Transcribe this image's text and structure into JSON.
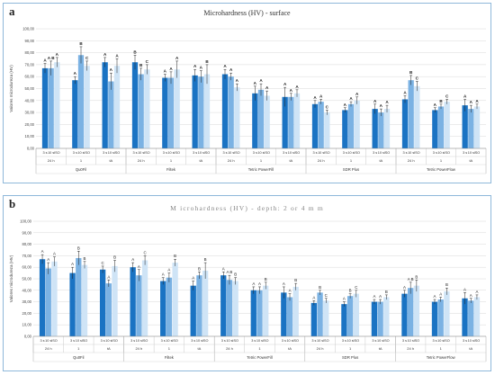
{
  "colors": {
    "dark": "#1a73c3",
    "mid": "#7bb2e3",
    "light": "#cfe4f6",
    "grid": "#d8d8d8",
    "axis": "#888888",
    "panel_border": "#8fb8da"
  },
  "chart_data": [
    {
      "panel": "a",
      "type": "bar",
      "title": "Microhardness (HV) - surface",
      "ylabel": "Valores microdureza (HV)",
      "ylim": [
        0,
        100
      ],
      "yticks": [
        "0,00",
        "10,00",
        "20,00",
        "30,00",
        "40,00",
        "50,00",
        "60,00",
        "70,00",
        "80,00",
        "90,00",
        "100,00"
      ],
      "bar_labels": [
        "3 s",
        "10 s",
        "ISO"
      ],
      "materials": [
        {
          "name": "Qu0Fil",
          "groups": [
            {
              "name": "24 h",
              "values": [
                67,
                67,
                72
              ],
              "errors": [
                4,
                6,
                4
              ],
              "letters": [
                "A",
                "A B",
                "A"
              ]
            },
            {
              "name": "1",
              "values": [
                57,
                78,
                69
              ],
              "errors": [
                3,
                7,
                4
              ],
              "letters": [
                "A",
                "B",
                "C"
              ]
            },
            {
              "name": "tA",
              "values": [
                72,
                56,
                69
              ],
              "errors": [
                4,
                7,
                6
              ],
              "letters": [
                "A",
                "A",
                "A"
              ]
            }
          ]
        },
        {
          "name": "Filtek",
          "groups": [
            {
              "name": "24 h",
              "values": [
                72,
                62,
                66
              ],
              "errors": [
                6,
                5,
                4
              ],
              "letters": [
                "B",
                "B",
                "C"
              ]
            },
            {
              "name": "1",
              "values": [
                59,
                59,
                66
              ],
              "errors": [
                3,
                5,
                7
              ],
              "letters": [
                "A",
                "A",
                "A"
              ]
            },
            {
              "name": "tA",
              "values": [
                61,
                60,
                62
              ],
              "errors": [
                5,
                5,
                8
              ],
              "letters": [
                "A",
                "A",
                "B"
              ]
            }
          ]
        },
        {
          "name": "Tetric PowerFill",
          "groups": [
            {
              "name": "24 h",
              "values": [
                62,
                60,
                51
              ],
              "errors": [
                4,
                3,
                3
              ],
              "letters": [
                "A",
                "A",
                "A"
              ]
            },
            {
              "name": "1",
              "values": [
                46,
                49,
                44
              ],
              "errors": [
                6,
                5,
                4
              ],
              "letters": [
                "A",
                "A",
                "A"
              ]
            },
            {
              "name": "tA",
              "values": [
                43,
                43,
                46
              ],
              "errors": [
                8,
                3,
                3
              ],
              "letters": [
                "A",
                "A",
                "A"
              ]
            }
          ]
        },
        {
          "name": "SDR Plus",
          "groups": [
            {
              "name": "24 h",
              "values": [
                37,
                39,
                30
              ],
              "errors": [
                3,
                2,
                2
              ],
              "letters": [
                "A",
                "A",
                "C"
              ]
            },
            {
              "name": "1",
              "values": [
                32,
                37,
                40
              ],
              "errors": [
                2,
                2,
                3
              ],
              "letters": [
                "A",
                "A",
                "A"
              ]
            },
            {
              "name": "tA",
              "values": [
                33,
                30,
                33
              ],
              "errors": [
                4,
                3,
                3
              ],
              "letters": [
                "A",
                "A",
                "A"
              ]
            }
          ]
        },
        {
          "name": "Tetric PowerFlow",
          "groups": [
            {
              "name": "24 h",
              "values": [
                41,
                57,
                52
              ],
              "errors": [
                3,
                4,
                4
              ],
              "letters": [
                "A",
                "B",
                "C"
              ]
            },
            {
              "name": "1",
              "values": [
                32,
                35,
                39
              ],
              "errors": [
                2,
                2,
                2
              ],
              "letters": [
                "A",
                "B",
                "C"
              ]
            },
            {
              "name": "tA",
              "values": [
                36,
                33,
                35
              ],
              "errors": [
                5,
                3,
                2
              ],
              "letters": [
                "A",
                "A",
                "A"
              ]
            }
          ]
        }
      ]
    },
    {
      "panel": "b",
      "type": "bar",
      "title": "Microhardness (HV) - depth: 2 or 4 mm",
      "ylabel": "Valores microdureza (HV)",
      "ylim": [
        0,
        100
      ],
      "yticks": [
        "0,00",
        "10,00",
        "20,00",
        "30,00",
        "40,00",
        "50,00",
        "60,00",
        "70,00",
        "80,00",
        "90,00",
        "100,00"
      ],
      "bar_labels": [
        "3 s",
        "10 s",
        "ISO"
      ],
      "materials": [
        {
          "name": "Qu0Fil",
          "groups": [
            {
              "name": "24 h",
              "values": [
                67,
                59,
                65
              ],
              "errors": [
                4,
                5,
                4
              ],
              "letters": [
                "A",
                "A",
                "A"
              ]
            },
            {
              "name": "1",
              "values": [
                55,
                68,
                62
              ],
              "errors": [
                5,
                6,
                3
              ],
              "letters": [
                "A",
                "B",
                "B"
              ]
            },
            {
              "name": "tA",
              "values": [
                58,
                46,
                61
              ],
              "errors": [
                3,
                3,
                5
              ],
              "letters": [
                "C",
                "A",
                "B"
              ]
            }
          ]
        },
        {
          "name": "Filtek",
          "groups": [
            {
              "name": "24 h",
              "values": [
                60,
                53,
                66
              ],
              "errors": [
                4,
                5,
                4
              ],
              "letters": [
                "A",
                "A",
                "C"
              ]
            },
            {
              "name": "1",
              "values": [
                48,
                51,
                64
              ],
              "errors": [
                3,
                4,
                3
              ],
              "letters": [
                "A",
                "A",
                "B"
              ]
            },
            {
              "name": "tA",
              "values": [
                44,
                53,
                57
              ],
              "errors": [
                4,
                3,
                7
              ],
              "letters": [
                "A",
                "B",
                "B"
              ]
            }
          ]
        },
        {
          "name": "Tetric PowerFill",
          "groups": [
            {
              "name": "24 h",
              "values": [
                53,
                49,
                48
              ],
              "errors": [
                3,
                4,
                3
              ],
              "letters": [
                "A",
                "A B",
                "B"
              ]
            },
            {
              "name": "1",
              "values": [
                40,
                40,
                44
              ],
              "errors": [
                3,
                3,
                3
              ],
              "letters": [
                "A",
                "A",
                "B"
              ]
            },
            {
              "name": "tA",
              "values": [
                38,
                34,
                43
              ],
              "errors": [
                5,
                3,
                3
              ],
              "letters": [
                "A",
                "A",
                "B"
              ]
            }
          ]
        },
        {
          "name": "SDR Plus",
          "groups": [
            {
              "name": "24 h",
              "values": [
                29,
                38,
                31
              ],
              "errors": [
                2,
                2,
                2
              ],
              "letters": [
                "A",
                "B",
                "C"
              ]
            },
            {
              "name": "1",
              "values": [
                28,
                35,
                37
              ],
              "errors": [
                2,
                2,
                3
              ],
              "letters": [
                "A",
                "B",
                "C"
              ]
            },
            {
              "name": "tA",
              "values": [
                30,
                30,
                34
              ],
              "errors": [
                2,
                2,
                2
              ],
              "letters": [
                "A",
                "A",
                "B"
              ]
            }
          ]
        },
        {
          "name": "Tetric PowerFlow",
          "groups": [
            {
              "name": "24 h",
              "values": [
                37,
                42,
                44
              ],
              "errors": [
                3,
                5,
                5
              ],
              "letters": [
                "A",
                "A B",
                "B"
              ]
            },
            {
              "name": "1",
              "values": [
                30,
                32,
                39
              ],
              "errors": [
                2,
                2,
                3
              ],
              "letters": [
                "A",
                "A",
                "B"
              ]
            },
            {
              "name": "tA",
              "values": [
                33,
                31,
                34
              ],
              "errors": [
                5,
                2,
                2
              ],
              "letters": [
                "A",
                "A",
                "A"
              ]
            }
          ]
        }
      ]
    }
  ],
  "panels": {
    "a": {
      "letter": "a",
      "title": "Microhardness (HV) - surface"
    },
    "b": {
      "letter": "b",
      "title": "M icrohardness (HV) - depth: 2 or 4 m m"
    }
  }
}
